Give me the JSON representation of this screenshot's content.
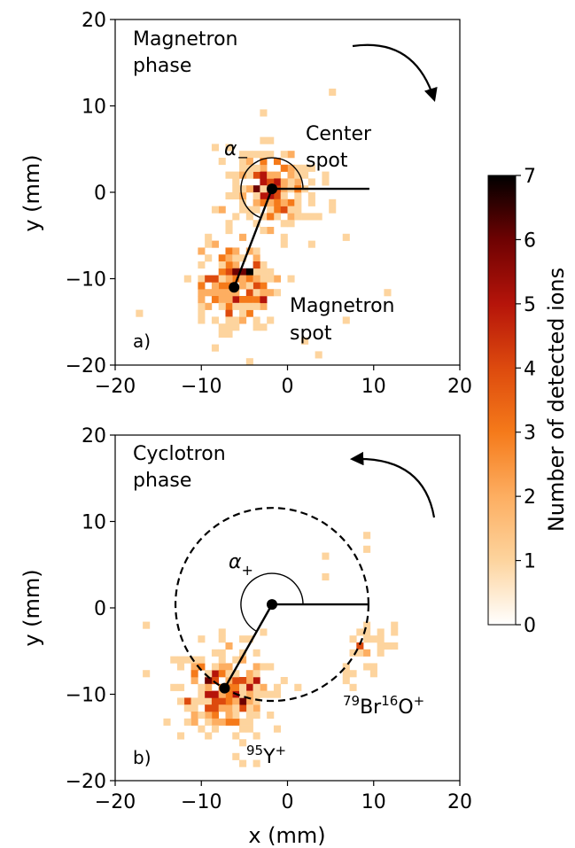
{
  "chart_data": [
    {
      "type": "heatmap",
      "panel_label": "a)",
      "xlabel": "",
      "ylabel": "y (mm)",
      "xlim": [
        -20,
        20
      ],
      "ylim": [
        -20,
        20
      ],
      "xticks": [
        "−20",
        "−10",
        "0",
        "10",
        "20"
      ],
      "yticks": [
        "−20",
        "−10",
        "0",
        "10",
        "20"
      ],
      "phase_label": [
        "Magnetron",
        "phase"
      ],
      "angle_label": "α−",
      "rotation_arrow": "clockwise",
      "center_spot": {
        "x": -1.8,
        "y": 0.4,
        "label": [
          "Center",
          "spot"
        ]
      },
      "measured_spot": {
        "x": -6.2,
        "y": -11.0,
        "label": [
          "Magnetron",
          "spot"
        ]
      },
      "reference_line_end": {
        "x": 9.5,
        "y": 0.4
      },
      "angle_arc_radius": 3.6,
      "clusters": [
        {
          "x": -1.8,
          "y": 0.4,
          "spread": 2.5,
          "count": 190,
          "max_count": 6
        },
        {
          "x": -6.2,
          "y": -11.0,
          "spread": 2.3,
          "count": 200,
          "max_count": 6
        }
      ],
      "scattered_points": [
        [
          5,
          11.8
        ],
        [
          -3,
          9.6
        ],
        [
          3,
          -6
        ],
        [
          6.8,
          -14.8
        ],
        [
          3.6,
          -18.7
        ],
        [
          -17.5,
          -13.7
        ],
        [
          11.8,
          -11.7
        ],
        [
          6.5,
          -5.5
        ],
        [
          -7.5,
          -16.2
        ],
        [
          -8.8,
          5.3
        ],
        [
          -4.6,
          -20
        ],
        [
          2.4,
          -17.6
        ]
      ]
    },
    {
      "type": "heatmap",
      "panel_label": "b)",
      "xlabel": "x (mm)",
      "ylabel": "y (mm)",
      "xlim": [
        -20,
        20
      ],
      "ylim": [
        -20,
        20
      ],
      "xticks": [
        "−20",
        "−10",
        "0",
        "10",
        "20"
      ],
      "yticks": [
        "−20",
        "−10",
        "0",
        "10",
        "20"
      ],
      "phase_label": [
        "Cyclotron",
        "phase"
      ],
      "angle_label": "α+",
      "rotation_arrow": "counterclockwise",
      "center_spot": {
        "x": -1.8,
        "y": 0.4
      },
      "measured_spot": {
        "x": -7.3,
        "y": -9.3
      },
      "reference_line_end": {
        "x": 9.5,
        "y": 0.4
      },
      "angle_arc_radius": 3.6,
      "dashed_circle_radius": 11.2,
      "ion_labels": [
        {
          "mass": "79",
          "element": "Br",
          "mass2": "16",
          "element2": "O",
          "charge": "+",
          "x": 13,
          "y": -11.3
        },
        {
          "mass": "95",
          "element": "Y",
          "charge": "+",
          "x": -1.8,
          "y": -17.3
        }
      ],
      "clusters": [
        {
          "x": -7.3,
          "y": -9.3,
          "spread": 2.6,
          "count": 230,
          "max_count": 5
        },
        {
          "x": 9.5,
          "y": -4.5,
          "spread": 2.0,
          "count": 30,
          "max_count": 2
        }
      ],
      "scattered_points": [
        [
          -16.2,
          -2.4
        ],
        [
          9,
          8.2
        ],
        [
          4,
          6.2
        ],
        [
          -12.5,
          -5.8
        ],
        [
          -5,
          -15.6
        ],
        [
          4.5,
          3.8
        ],
        [
          9.3,
          6.8
        ],
        [
          -2,
          -12.6
        ]
      ]
    }
  ],
  "colorbar": {
    "label": "Number of detected ions",
    "min": 0,
    "max": 7,
    "ticks": [
      "0",
      "1",
      "2",
      "3",
      "4",
      "5",
      "6",
      "7"
    ],
    "colormap": [
      "#ffffff",
      "#fdd49e",
      "#fdae61",
      "#f57a1a",
      "#dd4a0e",
      "#b5140a",
      "#6e0202",
      "#000000"
    ]
  },
  "colors": {
    "line": "#000000",
    "frame": "#000000"
  }
}
